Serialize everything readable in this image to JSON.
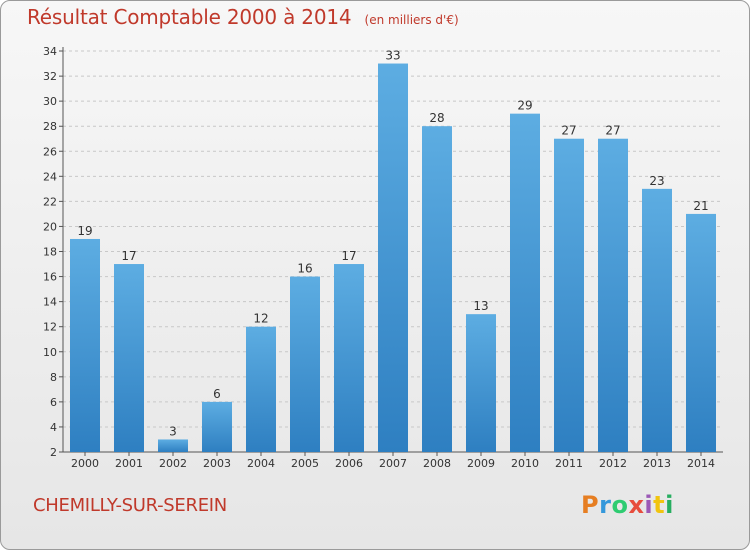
{
  "header": {
    "title": "Résultat Comptable 2000 à 2014",
    "subtitle": "(en milliers d'€)"
  },
  "footer": {
    "city": "CHEMILLY-SUR-SEREIN",
    "logo_text": "Proxiti",
    "logo_colors": [
      "#e67e22",
      "#3498db",
      "#2ecc71",
      "#e74c3c",
      "#9b59b6",
      "#f1c40f",
      "#27ae60"
    ]
  },
  "colors": {
    "bar_top": "#5dade2",
    "bar_bottom": "#2e7fc1",
    "title": "#c0392b"
  },
  "chart_data": {
    "type": "bar",
    "title": "Résultat Comptable 2000 à 2014",
    "xlabel": "",
    "ylabel": "",
    "categories": [
      "2000",
      "2001",
      "2002",
      "2003",
      "2004",
      "2005",
      "2006",
      "2007",
      "2008",
      "2009",
      "2010",
      "2011",
      "2012",
      "2013",
      "2014"
    ],
    "values": [
      19,
      17,
      3,
      6,
      12,
      16,
      17,
      33,
      28,
      13,
      29,
      27,
      27,
      23,
      21
    ],
    "ylim": [
      2,
      34
    ],
    "yticks": [
      2,
      4,
      6,
      8,
      10,
      12,
      14,
      16,
      18,
      20,
      22,
      24,
      26,
      28,
      30,
      32,
      34
    ],
    "grid": "horizontal-dashed",
    "data_labels": true
  }
}
